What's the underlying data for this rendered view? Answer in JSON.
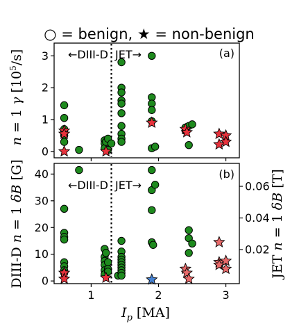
{
  "figure": {
    "legend_text": "○ = benign, ★ = non-benign",
    "xlabel": "I_p [MA]",
    "colors": {
      "benign": "#1e8a1e",
      "nonbenign": "#e8323c",
      "nonbenign_jet_b": "#e86a6a",
      "edge": "#000000",
      "blue_marker": "#4682d2"
    }
  },
  "chart_data": [
    {
      "type": "scatter",
      "panel_label": "(a)",
      "ylabel": "n = 1 γ [10^5/s]",
      "xlim": [
        0.45,
        3.2
      ],
      "ylim": [
        -0.2,
        3.4
      ],
      "xticks": [
        1,
        2,
        3
      ],
      "yticks": [
        0,
        1,
        2,
        3
      ],
      "divider_x": 1.3,
      "region_left": "←DIII-D",
      "region_right": "JET→",
      "series": [
        {
          "name": "benign",
          "marker": "circle",
          "points": [
            [
              0.6,
              1.45
            ],
            [
              0.6,
              1.05
            ],
            [
              0.6,
              0.7
            ],
            [
              0.6,
              0.6
            ],
            [
              0.6,
              0.5
            ],
            [
              0.6,
              0.3
            ],
            [
              0.82,
              0.05
            ],
            [
              1.2,
              0.35
            ],
            [
              1.2,
              0.25
            ],
            [
              1.2,
              0.1
            ],
            [
              1.22,
              0.3
            ],
            [
              1.25,
              0.4
            ],
            [
              1.25,
              0.05
            ],
            [
              1.3,
              0.25
            ],
            [
              1.45,
              2.8
            ],
            [
              1.45,
              2.0
            ],
            [
              1.45,
              1.85
            ],
            [
              1.45,
              1.6
            ],
            [
              1.45,
              1.5
            ],
            [
              1.45,
              1.2
            ],
            [
              1.45,
              0.8
            ],
            [
              1.45,
              0.55
            ],
            [
              1.45,
              0.4
            ],
            [
              1.45,
              0.3
            ],
            [
              1.9,
              3.0
            ],
            [
              1.9,
              1.7
            ],
            [
              1.9,
              1.5
            ],
            [
              1.9,
              1.3
            ],
            [
              1.9,
              0.95
            ],
            [
              1.9,
              0.1
            ],
            [
              1.95,
              0.15
            ],
            [
              2.4,
              0.75
            ],
            [
              2.4,
              0.65
            ],
            [
              2.45,
              0.8
            ],
            [
              2.45,
              0.2
            ],
            [
              2.5,
              0.85
            ]
          ]
        },
        {
          "name": "non-benign",
          "marker": "star",
          "points": [
            [
              0.6,
              0.65
            ],
            [
              0.6,
              0.55
            ],
            [
              0.6,
              0.0
            ],
            [
              1.22,
              0.0
            ],
            [
              1.9,
              0.9
            ],
            [
              2.4,
              0.7
            ],
            [
              2.42,
              0.6
            ],
            [
              2.9,
              0.55
            ],
            [
              2.9,
              0.22
            ],
            [
              3.0,
              0.5
            ],
            [
              3.0,
              0.3
            ]
          ]
        }
      ]
    },
    {
      "type": "scatter",
      "panel_label": "(b)",
      "ylabel": "DIII-D n = 1 δB [G]",
      "y2label": "JET n = 1 δB [T]",
      "xlim": [
        0.45,
        3.2
      ],
      "ylim": [
        -1,
        44
      ],
      "xticks": [
        1,
        2,
        3
      ],
      "yticks": [
        0,
        10,
        20,
        30,
        40
      ],
      "y2ticks": [
        "0.02",
        "0.04",
        "0.06"
      ],
      "divider_x": 1.3,
      "region_left": "←DIII-D",
      "region_right": "JET→",
      "series": [
        {
          "name": "benign",
          "marker": "circle",
          "points": [
            [
              0.6,
              27
            ],
            [
              0.6,
              18
            ],
            [
              0.6,
              16.5
            ],
            [
              0.6,
              15.5
            ],
            [
              0.6,
              7
            ],
            [
              0.6,
              5.5
            ],
            [
              0.6,
              4
            ],
            [
              0.6,
              3
            ],
            [
              0.82,
              41.5
            ],
            [
              1.2,
              12
            ],
            [
              1.2,
              9
            ],
            [
              1.2,
              7.5
            ],
            [
              1.2,
              6
            ],
            [
              1.2,
              4
            ],
            [
              1.2,
              2.5
            ],
            [
              1.22,
              10.5
            ],
            [
              1.25,
              7
            ],
            [
              1.25,
              4.5
            ],
            [
              1.25,
              3.5
            ],
            [
              1.4,
              2
            ],
            [
              1.45,
              15
            ],
            [
              1.45,
              11
            ],
            [
              1.45,
              9
            ],
            [
              1.45,
              8
            ],
            [
              1.45,
              7
            ],
            [
              1.45,
              6
            ],
            [
              1.45,
              5
            ],
            [
              1.45,
              4
            ],
            [
              1.45,
              3
            ],
            [
              1.45,
              2
            ],
            [
              1.9,
              41.5
            ],
            [
              1.9,
              34
            ],
            [
              1.9,
              26.5
            ],
            [
              1.9,
              14.5
            ],
            [
              1.92,
              13.5
            ],
            [
              1.95,
              36
            ],
            [
              2.45,
              19
            ],
            [
              2.45,
              16
            ],
            [
              2.45,
              10.5
            ],
            [
              2.5,
              14
            ]
          ]
        },
        {
          "name": "non-benign",
          "marker": "star",
          "points": [
            [
              0.6,
              3
            ],
            [
              0.6,
              0.8
            ],
            [
              1.22,
              1.2
            ],
            [
              2.4,
              4.5
            ],
            [
              2.42,
              3
            ],
            [
              2.45,
              0.8
            ],
            [
              2.9,
              14.5
            ],
            [
              2.9,
              7
            ],
            [
              2.9,
              6
            ],
            [
              3.0,
              7.5
            ],
            [
              3.0,
              4.5
            ]
          ]
        },
        {
          "name": "non-benign (blue)",
          "marker": "star",
          "points": [
            [
              1.9,
              0.5
            ]
          ]
        }
      ]
    }
  ]
}
